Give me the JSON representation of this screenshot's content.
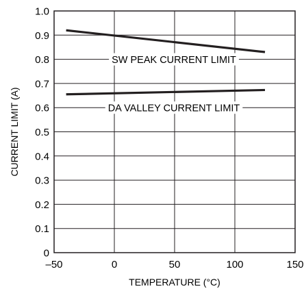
{
  "chart_data": {
    "type": "line",
    "title": "",
    "xlabel": "TEMPERATURE (°C)",
    "ylabel": "CURRENT LIMIT (A)",
    "xlim": [
      -50,
      150
    ],
    "ylim": [
      0,
      1.0
    ],
    "x_ticks": [
      -50,
      0,
      50,
      100,
      150
    ],
    "x_tick_labels": [
      "–50",
      "0",
      "50",
      "100",
      "150"
    ],
    "y_ticks": [
      0,
      0.1,
      0.2,
      0.3,
      0.4,
      0.5,
      0.6,
      0.7,
      0.8,
      0.9,
      1.0
    ],
    "y_tick_labels": [
      "0",
      "0.1",
      "0.2",
      "0.3",
      "0.4",
      "0.5",
      "0.6",
      "0.7",
      "0.8",
      "0.9",
      "1.0"
    ],
    "grid": true,
    "legend": "none",
    "series": [
      {
        "name": "SW PEAK CURRENT LIMIT",
        "x": [
          -40,
          125
        ],
        "y": [
          0.92,
          0.83
        ]
      },
      {
        "name": "DA VALLEY CURRENT LIMIT",
        "x": [
          -40,
          125
        ],
        "y": [
          0.655,
          0.673
        ]
      }
    ],
    "annotations": [
      {
        "text": "SW PEAK CURRENT LIMIT",
        "series": 0
      },
      {
        "text": "DA VALLEY CURRENT LIMIT",
        "series": 1
      }
    ],
    "colors": {
      "line": "#231f20",
      "grid": "#231f20",
      "background": "#ffffff"
    }
  }
}
